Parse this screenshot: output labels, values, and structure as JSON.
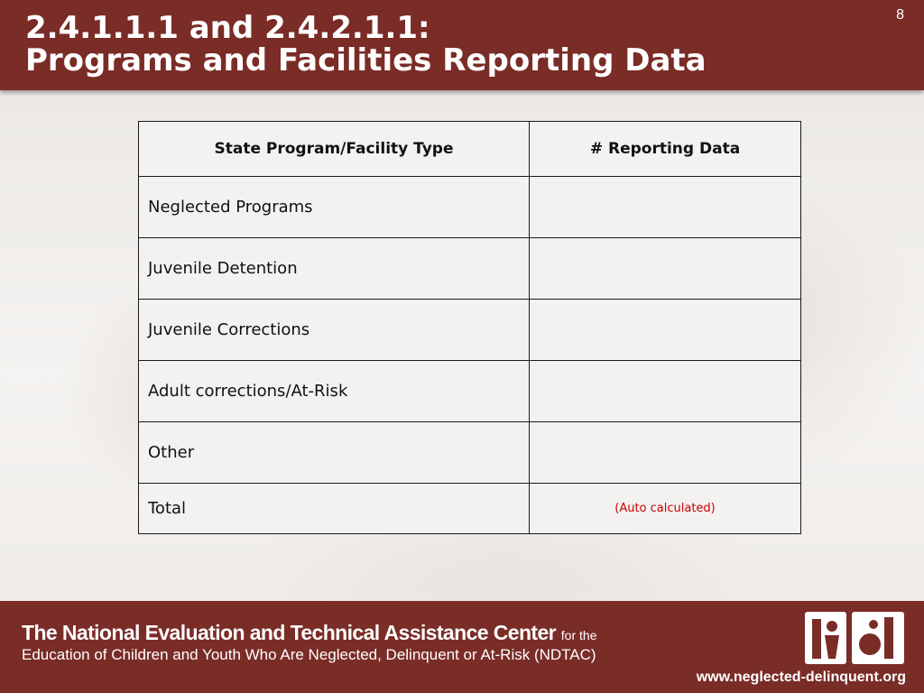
{
  "slide": {
    "title_line1": "2.4.1.1.1 and 2.4.2.1.1:",
    "title_line2": "Programs and Facilities Reporting Data",
    "number": "8"
  },
  "table": {
    "headers": [
      "State Program/Facility Type",
      "# Reporting Data"
    ],
    "rows": [
      {
        "label": "Neglected Programs",
        "value": ""
      },
      {
        "label": "Juvenile Detention",
        "value": ""
      },
      {
        "label": "Juvenile Corrections",
        "value": ""
      },
      {
        "label": "Adult corrections/At-Risk",
        "value": ""
      },
      {
        "label": "Other",
        "value": ""
      }
    ],
    "total": {
      "label": "Total",
      "value": "(Auto calculated)"
    }
  },
  "footer": {
    "org_name": "The National Evaluation and Technical Assistance Center",
    "for_the": "for the",
    "subtitle": "Education of Children and Youth Who Are Neglected, Delinquent or At-Risk (NDTAC)",
    "logo_icon": "ndtac-logo-icon",
    "url": "www.neglected-delinquent.org"
  },
  "colors": {
    "header_bg": "#7a2c27",
    "auto_text": "#c80000"
  }
}
